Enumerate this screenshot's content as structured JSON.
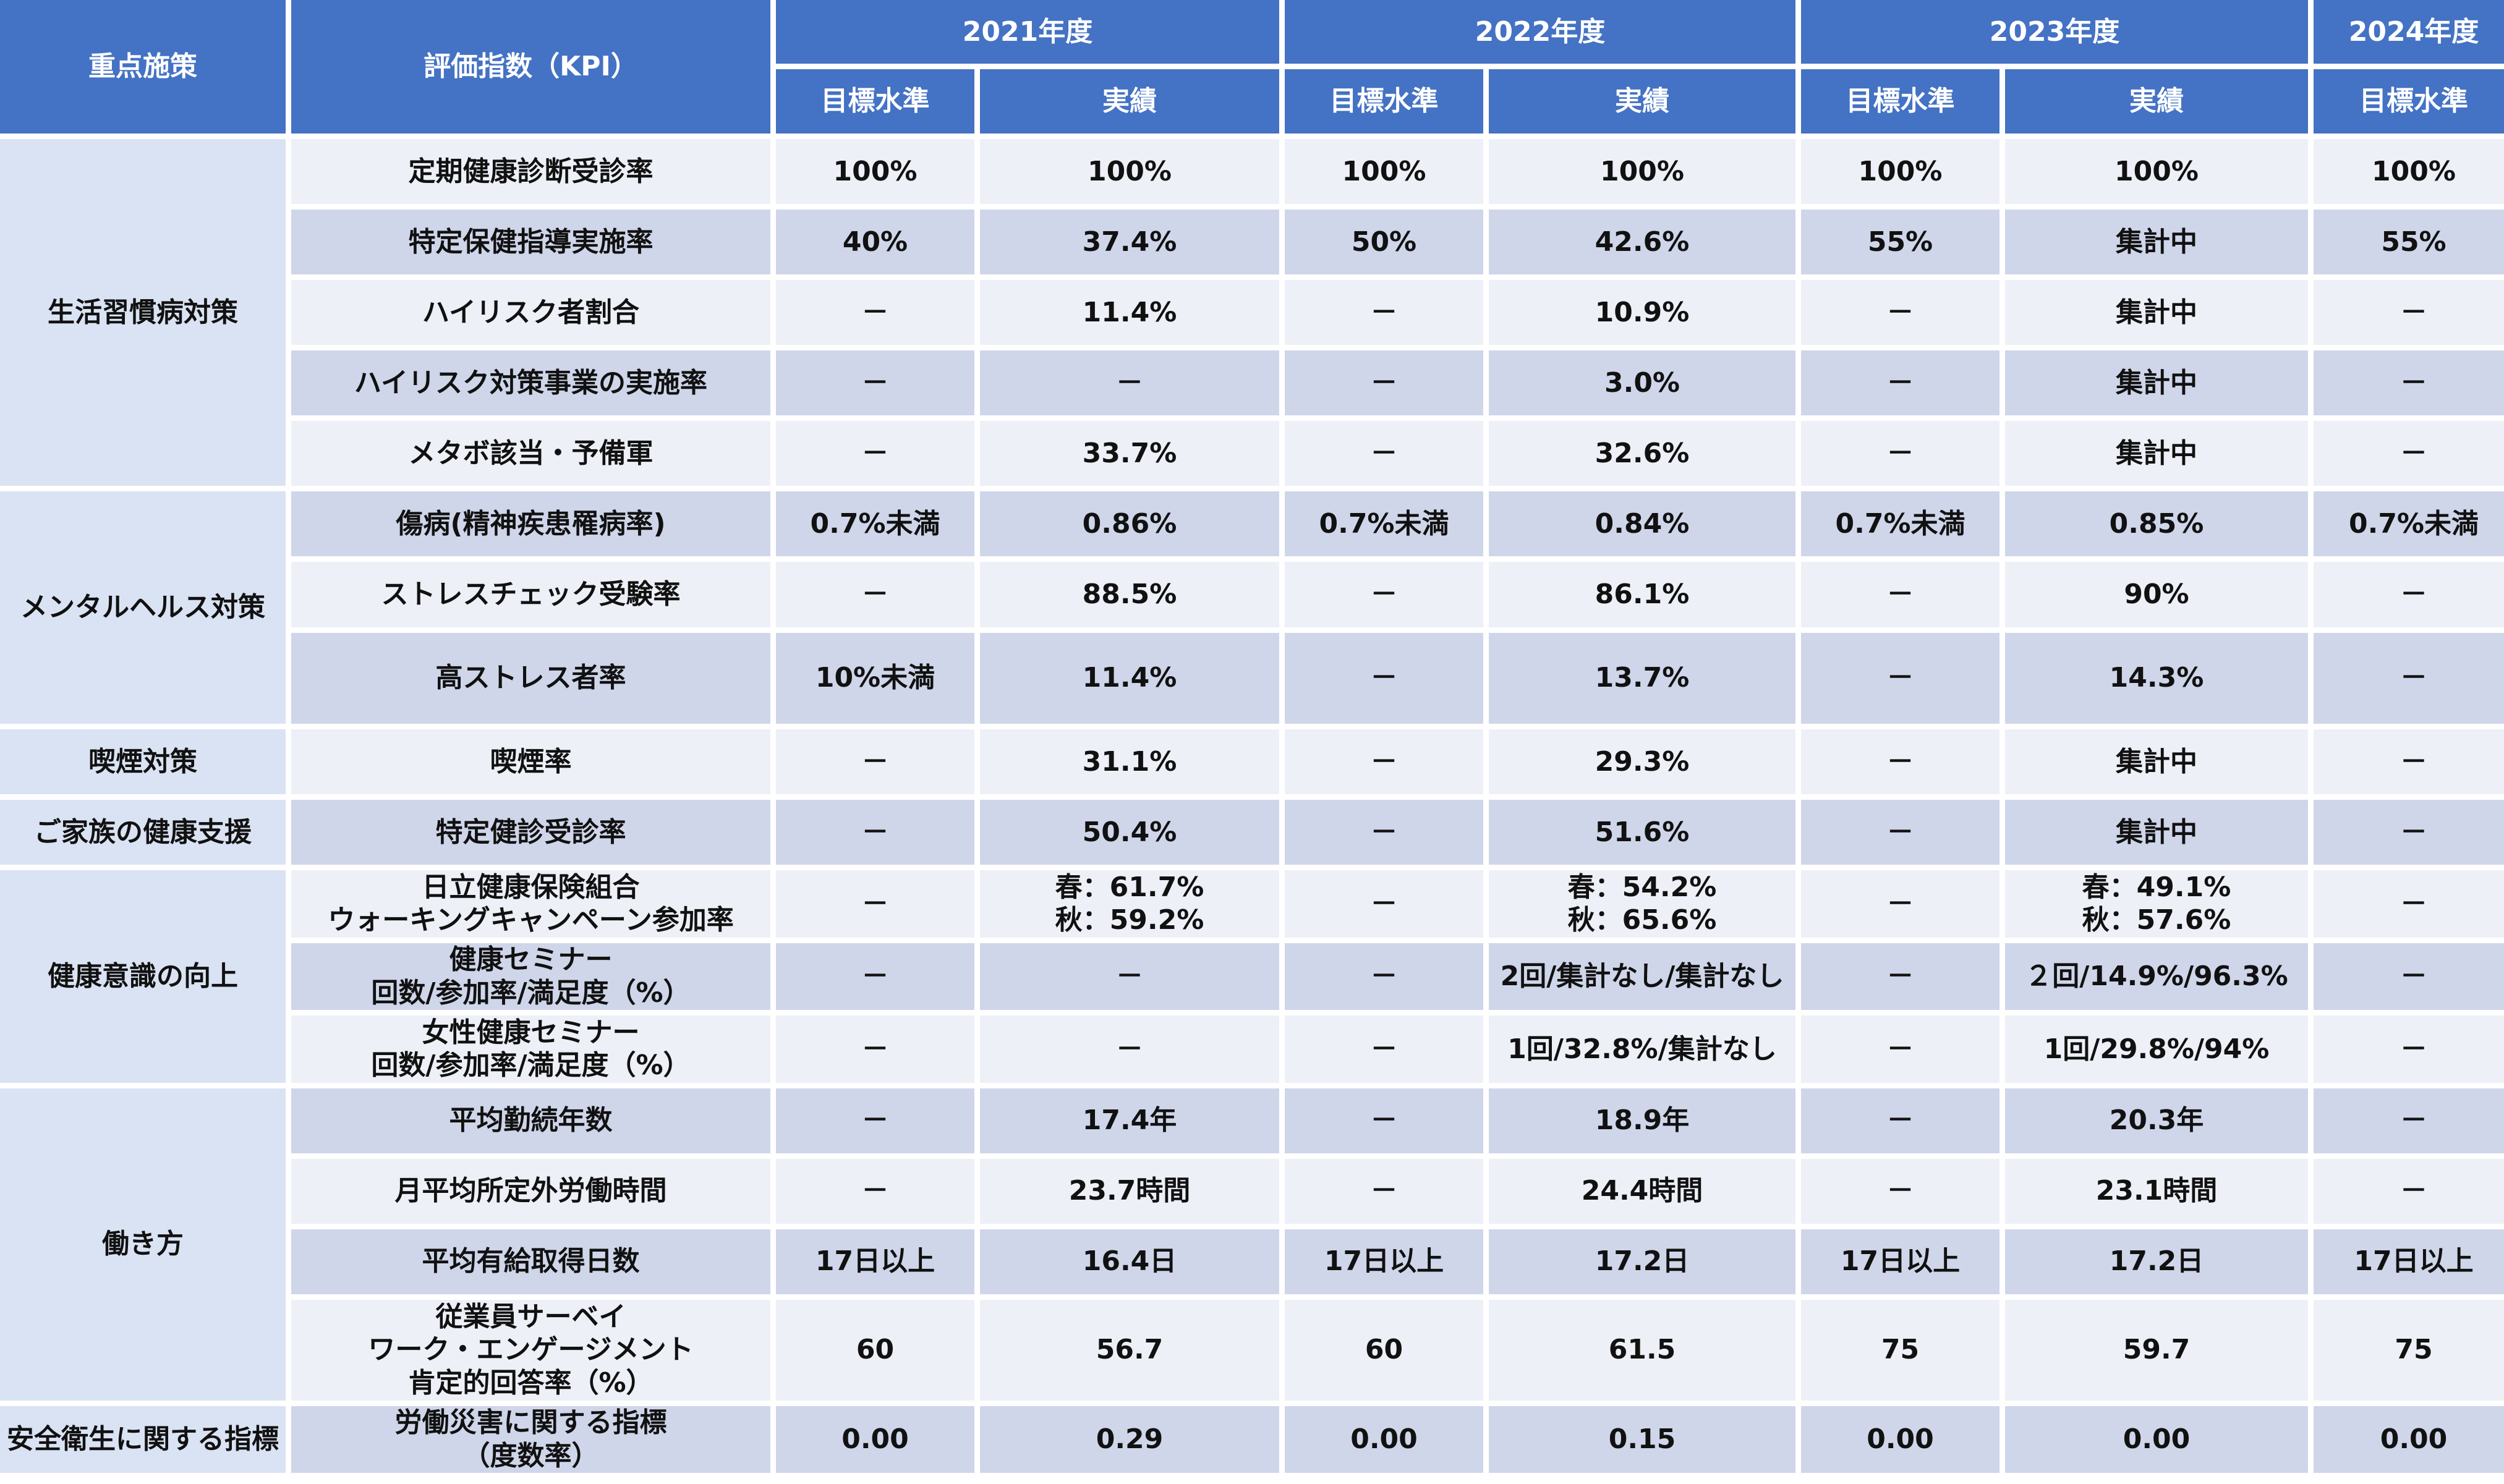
{
  "colors": {
    "header_bg": "#4472c4",
    "header_text": "#ffffff",
    "category_bg": "#dae3f3",
    "row_light": "#edf0f7",
    "row_dark": "#cfd6ea"
  },
  "header": {
    "policy": "重点施策",
    "kpi": "評価指数（KPI）",
    "years": [
      "2021年度",
      "2022年度",
      "2023年度",
      "2024年度"
    ],
    "target": "目標水準",
    "actual": "実績"
  },
  "categories": {
    "lifestyle": "生活習慣病対策",
    "mental": "メンタルヘルス対策",
    "smoking": "喫煙対策",
    "family": "ご家族の健康支援",
    "awareness": "健康意識の向上",
    "work": "働き方",
    "safety": "安全衛生に関する指標"
  },
  "rows": [
    {
      "kpi": "定期健康診断受診率",
      "v": [
        "100%",
        "100%",
        "100%",
        "100%",
        "100%",
        "100%",
        "100%"
      ]
    },
    {
      "kpi": "特定保健指導実施率",
      "v": [
        "40%",
        "37.4%",
        "50%",
        "42.6%",
        "55%",
        "集計中",
        "55%"
      ]
    },
    {
      "kpi": "ハイリスク者割合",
      "v": [
        "－",
        "11.4%",
        "－",
        "10.9%",
        "－",
        "集計中",
        "－"
      ]
    },
    {
      "kpi": "ハイリスク対策事業の実施率",
      "v": [
        "－",
        "－",
        "－",
        "3.0%",
        "－",
        "集計中",
        "－"
      ]
    },
    {
      "kpi": "メタボ該当・予備軍",
      "v": [
        "－",
        "33.7%",
        "－",
        "32.6%",
        "－",
        "集計中",
        "－"
      ]
    },
    {
      "kpi": "傷病(精神疾患罹病率)",
      "v": [
        "0.7%未満",
        "0.86%",
        "0.7%未満",
        "0.84%",
        "0.7%未満",
        "0.85%",
        "0.7%未満"
      ]
    },
    {
      "kpi": "ストレスチェック受験率",
      "v": [
        "－",
        "88.5%",
        "－",
        "86.1%",
        "－",
        "90%",
        "－"
      ]
    },
    {
      "kpi": "高ストレス者率",
      "v": [
        "10%未満",
        "11.4%",
        "－",
        "13.7%",
        "－",
        "14.3%",
        "－"
      ]
    },
    {
      "kpi": "喫煙率",
      "v": [
        "－",
        "31.1%",
        "－",
        "29.3%",
        "－",
        "集計中",
        "－"
      ]
    },
    {
      "kpi": "特定健診受診率",
      "v": [
        "－",
        "50.4%",
        "－",
        "51.6%",
        "－",
        "集計中",
        "－"
      ]
    },
    {
      "kpi": "日立健康保険組合\nウォーキングキャンペーン参加率",
      "v": [
        "－",
        "春：61.7%\n秋：59.2%",
        "－",
        "春：54.2%\n秋：65.6%",
        "－",
        "春：49.1%\n秋：57.6%",
        "－"
      ]
    },
    {
      "kpi": "健康セミナー\n回数/参加率/満足度（%）",
      "v": [
        "－",
        "－",
        "－",
        "2回/集計なし/集計なし",
        "－",
        "２回/14.9%/96.3%",
        "－"
      ]
    },
    {
      "kpi": "女性健康セミナー\n回数/参加率/満足度（%）",
      "v": [
        "－",
        "－",
        "－",
        "1回/32.8%/集計なし",
        "－",
        "1回/29.8%/94%",
        "－"
      ]
    },
    {
      "kpi": "平均勤続年数",
      "v": [
        "－",
        "17.4年",
        "－",
        "18.9年",
        "－",
        "20.3年",
        "－"
      ]
    },
    {
      "kpi": "月平均所定外労働時間",
      "v": [
        "－",
        "23.7時間",
        "－",
        "24.4時間",
        "－",
        "23.1時間",
        "－"
      ]
    },
    {
      "kpi": "平均有給取得日数",
      "v": [
        "17日以上",
        "16.4日",
        "17日以上",
        "17.2日",
        "17日以上",
        "17.2日",
        "17日以上"
      ]
    },
    {
      "kpi": "従業員サーベイ\nワーク・エンゲージメント\n肯定的回答率（%）",
      "v": [
        "60",
        "56.7",
        "60",
        "61.5",
        "75",
        "59.7",
        "75"
      ]
    },
    {
      "kpi": "労働災害に関する指標\n（度数率）",
      "v": [
        "0.00",
        "0.29",
        "0.00",
        "0.15",
        "0.00",
        "0.00",
        "0.00"
      ]
    }
  ]
}
